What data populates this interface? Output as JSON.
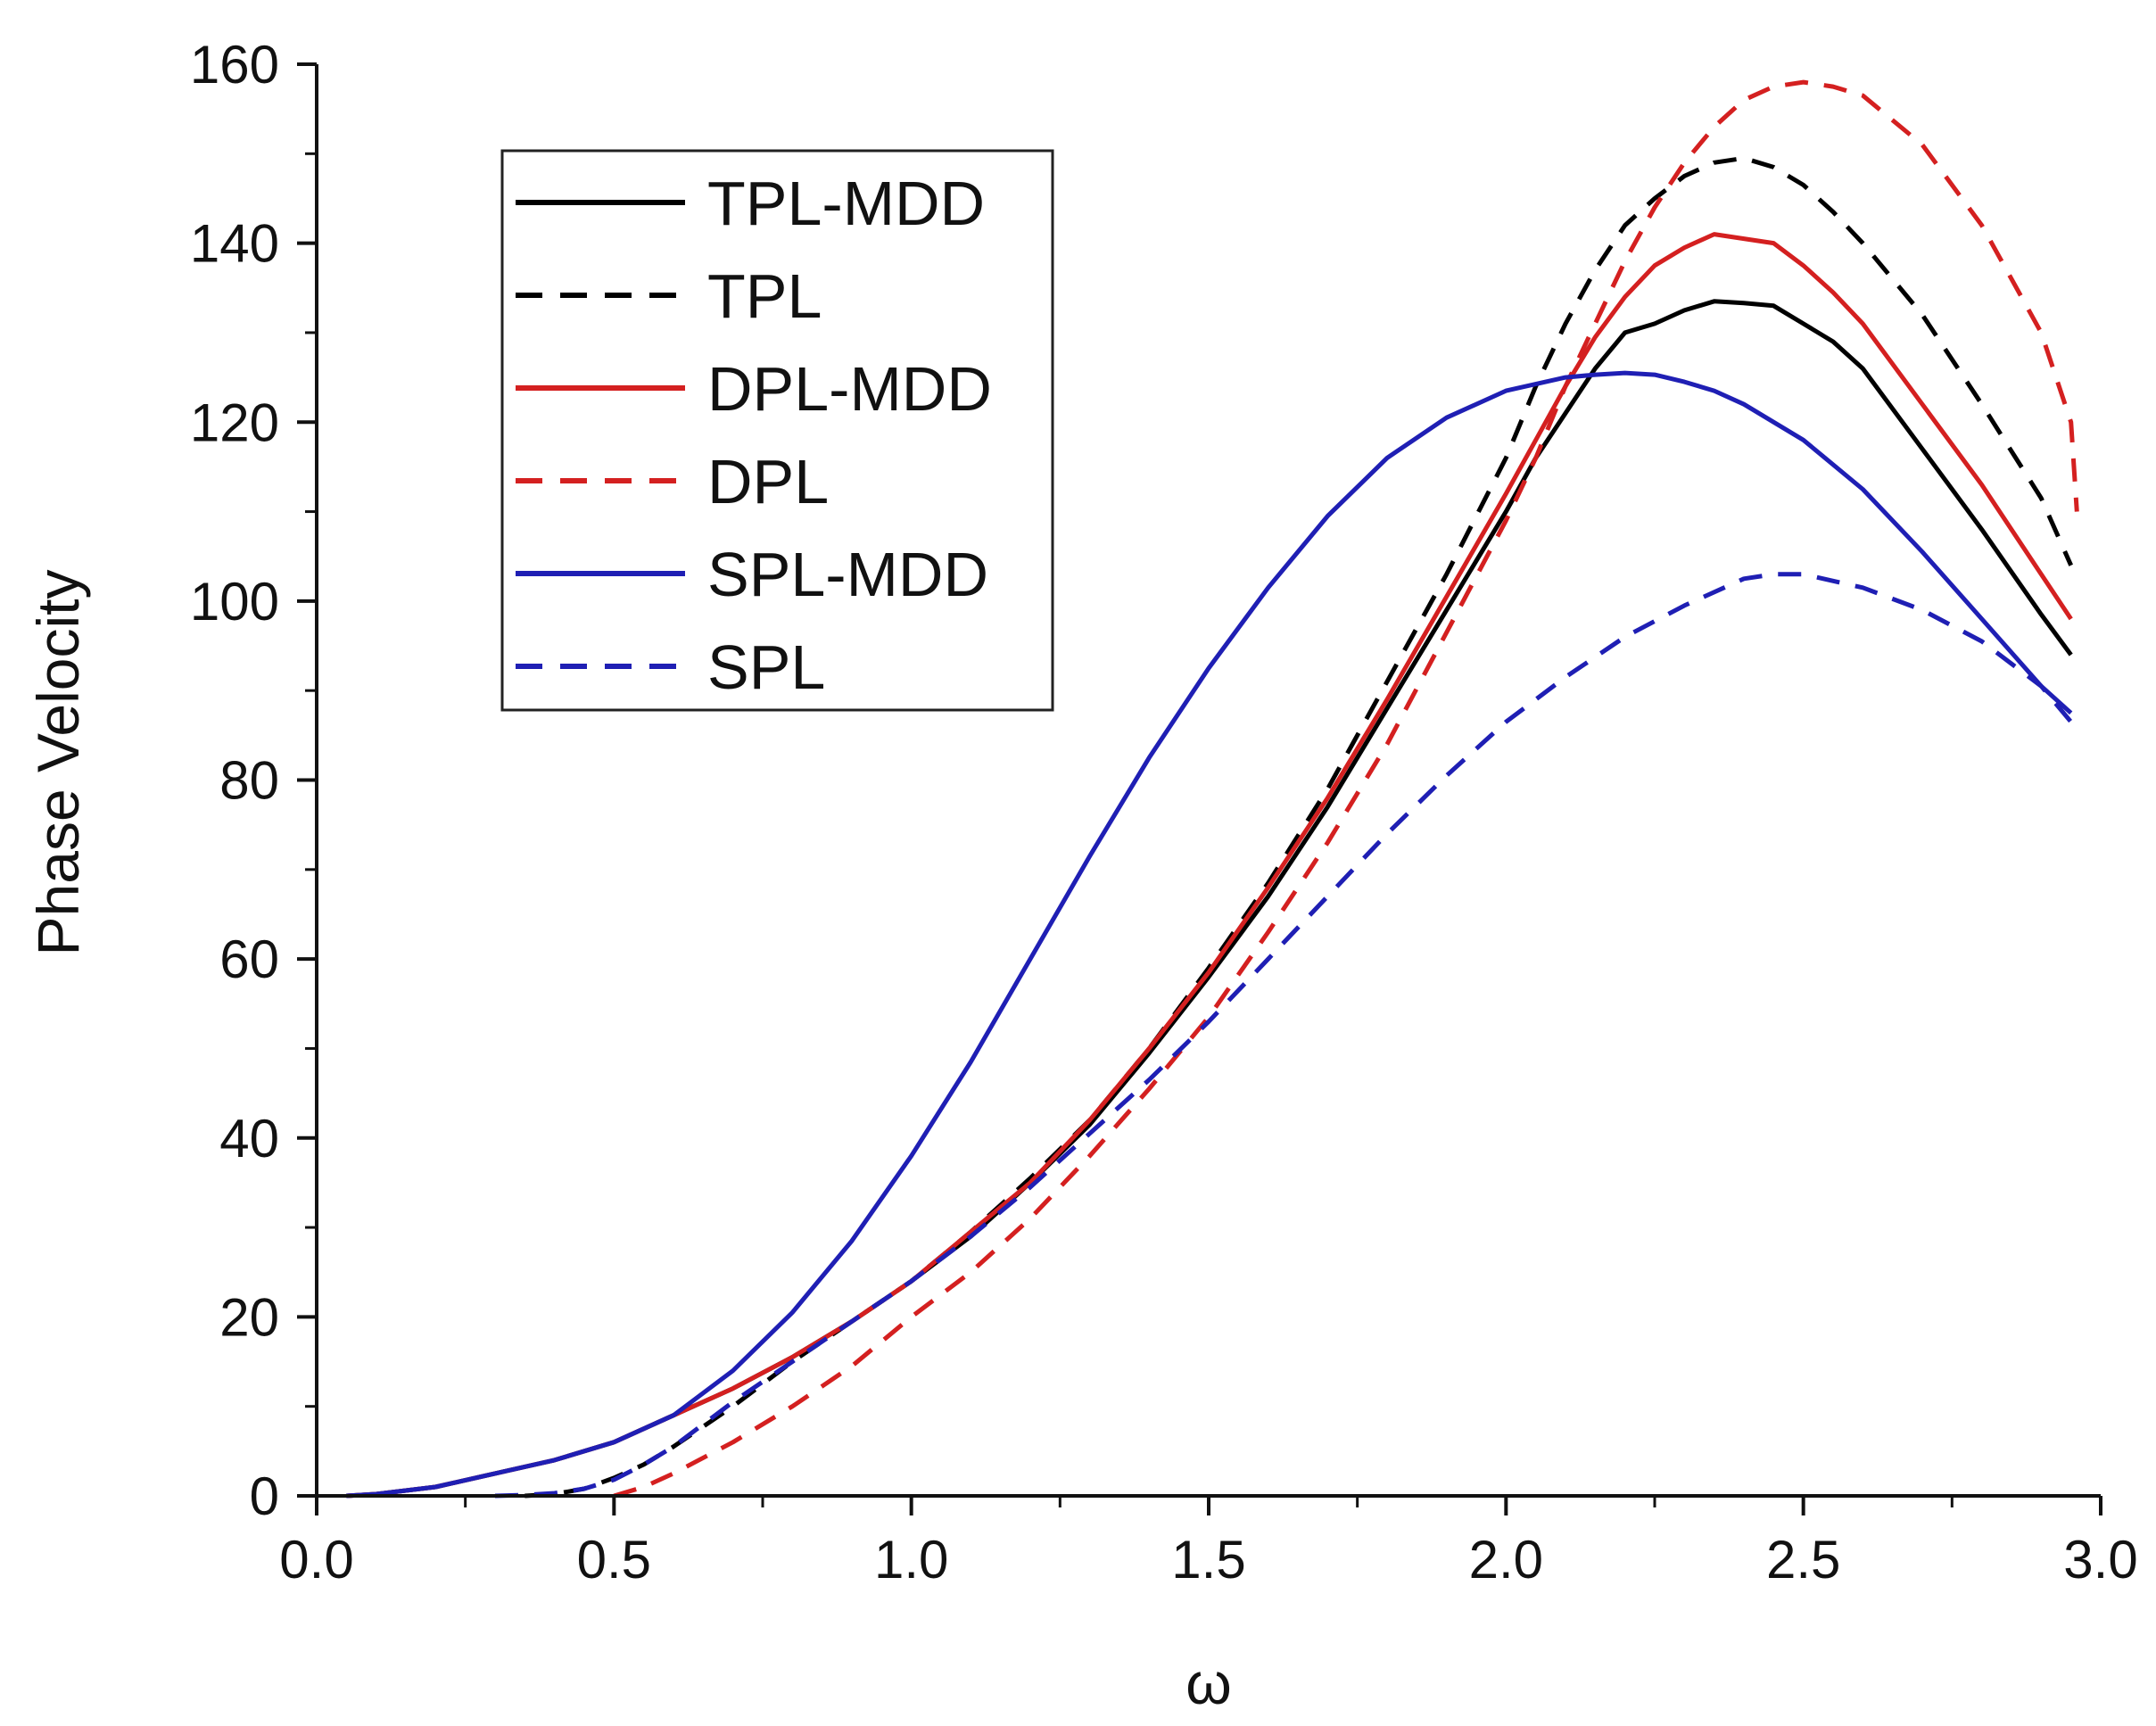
{
  "chart_data": {
    "type": "line",
    "title": "",
    "xlabel": "ω",
    "ylabel": "Phase Velocity",
    "xlim": [
      0.0,
      3.0
    ],
    "ylim": [
      0,
      160
    ],
    "x_ticks": [
      "0.0",
      "0.5",
      "1.0",
      "1.5",
      "2.0",
      "2.5",
      "3.0"
    ],
    "y_ticks": [
      "0",
      "20",
      "40",
      "60",
      "80",
      "100",
      "120",
      "140",
      "160"
    ],
    "legend_position": "top-left",
    "series": [
      {
        "name": "TPL-MDD",
        "color": "#000000",
        "dash": "solid",
        "x": [
          0.05,
          0.1,
          0.2,
          0.3,
          0.4,
          0.5,
          0.6,
          0.7,
          0.8,
          0.9,
          1.0,
          1.1,
          1.2,
          1.3,
          1.4,
          1.5,
          1.6,
          1.7,
          1.8,
          1.9,
          2.0,
          2.05,
          2.1,
          2.15,
          2.2,
          2.25,
          2.3,
          2.35,
          2.4,
          2.45,
          2.5,
          2.55,
          2.6,
          2.7,
          2.8,
          2.9,
          2.95
        ],
        "y": [
          0,
          0.2,
          1,
          2.5,
          4,
          6,
          9,
          12,
          15.5,
          19.5,
          24,
          29,
          35,
          41.5,
          49.5,
          58,
          67,
          77,
          88,
          99,
          110,
          116,
          121,
          126,
          130,
          131,
          132.5,
          133.5,
          133.3,
          133,
          131,
          129,
          126,
          117,
          108,
          98.5,
          94
        ]
      },
      {
        "name": "TPL",
        "color": "#000000",
        "dash": "dashed",
        "x": [
          0.35,
          0.4,
          0.45,
          0.5,
          0.55,
          0.6,
          0.7,
          0.8,
          0.9,
          1.0,
          1.1,
          1.2,
          1.3,
          1.4,
          1.5,
          1.6,
          1.7,
          1.8,
          1.9,
          2.0,
          2.05,
          2.1,
          2.15,
          2.2,
          2.25,
          2.3,
          2.35,
          2.4,
          2.45,
          2.5,
          2.55,
          2.6,
          2.7,
          2.8,
          2.9,
          2.95
        ],
        "y": [
          0,
          0.2,
          0.8,
          2,
          3.5,
          5.5,
          10,
          15,
          19.5,
          24,
          29.5,
          35.5,
          42,
          50,
          59,
          68.5,
          79,
          91,
          103,
          116,
          124,
          131,
          137,
          142,
          145,
          147.5,
          149,
          149.5,
          148.5,
          146.5,
          143.5,
          140,
          132,
          122,
          111.5,
          104
        ]
      },
      {
        "name": "DPL-MDD",
        "color": "#d42020",
        "dash": "solid",
        "x": [
          0.05,
          0.1,
          0.2,
          0.3,
          0.4,
          0.5,
          0.6,
          0.7,
          0.8,
          0.9,
          1.0,
          1.1,
          1.2,
          1.3,
          1.4,
          1.5,
          1.6,
          1.7,
          1.8,
          1.9,
          2.0,
          2.05,
          2.1,
          2.15,
          2.2,
          2.25,
          2.3,
          2.35,
          2.4,
          2.45,
          2.5,
          2.55,
          2.6,
          2.7,
          2.8,
          2.9,
          2.95
        ],
        "y": [
          0,
          0.2,
          1,
          2.5,
          4,
          6,
          9,
          12,
          15.5,
          19.5,
          24,
          29.5,
          35,
          42,
          50,
          58.5,
          68,
          78,
          89,
          100.5,
          112,
          118,
          124,
          129.5,
          134,
          137.5,
          139.5,
          141,
          140.5,
          140,
          137.5,
          134.5,
          131,
          122,
          113,
          103,
          98
        ]
      },
      {
        "name": "DPL",
        "color": "#d42020",
        "dash": "dashed",
        "x": [
          0.5,
          0.55,
          0.6,
          0.7,
          0.8,
          0.9,
          1.0,
          1.1,
          1.2,
          1.3,
          1.4,
          1.5,
          1.6,
          1.7,
          1.8,
          1.9,
          2.0,
          2.05,
          2.1,
          2.15,
          2.2,
          2.25,
          2.3,
          2.35,
          2.4,
          2.45,
          2.5,
          2.55,
          2.6,
          2.7,
          2.8,
          2.9,
          2.95,
          2.96
        ],
        "y": [
          0,
          1,
          2.5,
          6,
          10,
          14.5,
          20,
          25,
          31,
          38,
          45.5,
          53.5,
          63,
          73,
          84,
          96.5,
          109,
          116,
          124,
          131,
          138,
          144,
          149,
          153,
          156,
          157.5,
          158,
          157.5,
          156.5,
          151,
          142,
          130,
          120,
          110
        ]
      },
      {
        "name": "SPL-MDD",
        "color": "#1f1fb4",
        "dash": "solid",
        "x": [
          0.05,
          0.1,
          0.2,
          0.3,
          0.4,
          0.5,
          0.6,
          0.7,
          0.8,
          0.9,
          1.0,
          1.1,
          1.2,
          1.3,
          1.4,
          1.5,
          1.6,
          1.7,
          1.8,
          1.9,
          2.0,
          2.1,
          2.15,
          2.2,
          2.25,
          2.3,
          2.35,
          2.4,
          2.5,
          2.6,
          2.7,
          2.8,
          2.9,
          2.95
        ],
        "y": [
          0,
          0.2,
          1,
          2.5,
          4,
          6,
          9,
          14,
          20.5,
          28.5,
          38,
          48.5,
          60,
          71.5,
          82.5,
          92.5,
          101.5,
          109.5,
          116,
          120.5,
          123.5,
          125,
          125.3,
          125.5,
          125.3,
          124.5,
          123.5,
          122,
          118,
          112.5,
          105.5,
          98,
          90.5,
          87.5
        ]
      },
      {
        "name": "SPL",
        "color": "#1f1fb4",
        "dash": "dashed",
        "x": [
          0.3,
          0.35,
          0.4,
          0.45,
          0.5,
          0.55,
          0.6,
          0.7,
          0.8,
          0.9,
          1.0,
          1.1,
          1.2,
          1.3,
          1.4,
          1.5,
          1.6,
          1.7,
          1.8,
          1.9,
          2.0,
          2.1,
          2.2,
          2.3,
          2.4,
          2.45,
          2.5,
          2.6,
          2.7,
          2.8,
          2.9,
          2.95
        ],
        "y": [
          0,
          0.1,
          0.3,
          0.8,
          1.8,
          3.5,
          5.5,
          10.5,
          15,
          19.5,
          24,
          29,
          34.5,
          40.5,
          46.5,
          53,
          60,
          67,
          74,
          80.5,
          86.5,
          91.5,
          96,
          99.5,
          102.5,
          103,
          103,
          101.5,
          99,
          95.5,
          90.5,
          86.5
        ]
      }
    ]
  }
}
